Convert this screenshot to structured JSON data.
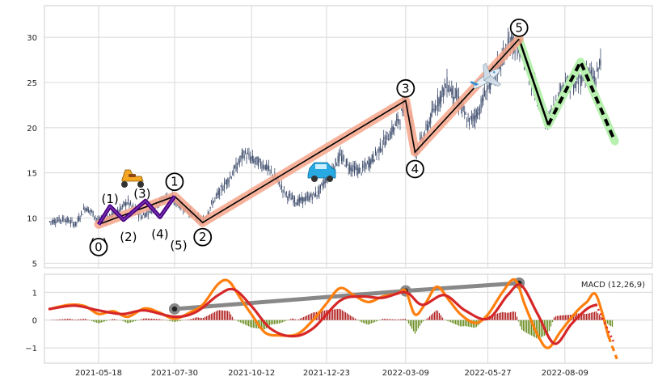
{
  "chart_data": [
    {
      "type": "candlestick",
      "panel": "price",
      "grid": true,
      "ylim": [
        4.5,
        33.5
      ],
      "yticks": [
        "5",
        "10",
        "15",
        "20",
        "25",
        "30"
      ],
      "xtick_labels": [
        "2021-05-18",
        "2021-07-30",
        "2021-10-12",
        "2021-12-23",
        "2022-03-09",
        "2022-05-27",
        "2022-08-09"
      ],
      "price_path": [
        [
          "2021-04-01",
          9.6
        ],
        [
          "2021-04-15",
          9.9
        ],
        [
          "2021-04-26",
          9.3
        ],
        [
          "2021-05-05",
          11.2
        ],
        [
          "2021-05-12",
          10.6
        ],
        [
          "2021-05-18",
          9.6
        ],
        [
          "2021-06-01",
          10.3
        ],
        [
          "2021-06-15",
          11.8
        ],
        [
          "2021-06-28",
          10.1
        ],
        [
          "2021-07-10",
          11.2
        ],
        [
          "2021-07-23",
          12.5
        ],
        [
          "2021-08-05",
          11.4
        ],
        [
          "2021-08-18",
          10.3
        ],
        [
          "2021-08-26",
          9.6
        ],
        [
          "2021-09-05",
          11.8
        ],
        [
          "2021-09-15",
          13.5
        ],
        [
          "2021-09-25",
          15.2
        ],
        [
          "2021-10-05",
          17.2
        ],
        [
          "2021-10-12",
          16.5
        ],
        [
          "2021-10-25",
          15.8
        ],
        [
          "2021-11-05",
          14.2
        ],
        [
          "2021-11-15",
          12.5
        ],
        [
          "2021-11-25",
          11.8
        ],
        [
          "2021-12-05",
          12.2
        ],
        [
          "2021-12-15",
          12.8
        ],
        [
          "2021-12-23",
          14.5
        ],
        [
          "2022-01-05",
          16.8
        ],
        [
          "2022-01-15",
          15.6
        ],
        [
          "2022-01-25",
          15.2
        ],
        [
          "2022-02-05",
          16.5
        ],
        [
          "2022-02-15",
          18.2
        ],
        [
          "2022-02-25",
          19.8
        ],
        [
          "2022-03-05",
          21.5
        ],
        [
          "2022-03-09",
          23.2
        ],
        [
          "2022-03-14",
          21.0
        ],
        [
          "2022-03-18",
          17.2
        ],
        [
          "2022-03-28",
          19.5
        ],
        [
          "2022-04-08",
          22.8
        ],
        [
          "2022-04-18",
          24.8
        ],
        [
          "2022-04-28",
          23.2
        ],
        [
          "2022-05-08",
          20.5
        ],
        [
          "2022-05-18",
          21.8
        ],
        [
          "2022-05-27",
          24.5
        ],
        [
          "2022-06-08",
          27.2
        ],
        [
          "2022-06-18",
          29.6
        ],
        [
          "2022-06-26",
          28.6
        ],
        [
          "2022-07-06",
          26.0
        ],
        [
          "2022-07-16",
          22.8
        ],
        [
          "2022-07-22",
          20.4
        ],
        [
          "2022-08-01",
          22.8
        ],
        [
          "2022-08-09",
          25.0
        ],
        [
          "2022-08-19",
          24.6
        ],
        [
          "2022-08-29",
          26.3
        ],
        [
          "2022-09-08",
          25.2
        ],
        [
          "2022-09-13",
          28.3
        ]
      ],
      "wave_labels": {
        "minor": [
          "(0)",
          "(1)",
          "(2)",
          "(3)",
          "(4)",
          "(5)"
        ],
        "major": [
          "0",
          "1",
          "2",
          "3",
          "4",
          "5"
        ]
      },
      "wave_points": {
        "major": [
          [
            "2021-05-18",
            9.3
          ],
          [
            "2021-07-30",
            12.4
          ],
          [
            "2021-08-26",
            9.5
          ],
          [
            "2022-03-09",
            23.0
          ],
          [
            "2022-03-18",
            17.3
          ],
          [
            "2022-06-26",
            29.8
          ]
        ],
        "minor": [
          [
            "2021-05-18",
            9.3
          ],
          [
            "2021-05-29",
            11.3
          ],
          [
            "2021-06-11",
            9.8
          ],
          [
            "2021-07-02",
            11.9
          ],
          [
            "2021-07-16",
            10.1
          ],
          [
            "2021-07-30",
            12.4
          ]
        ],
        "projection": [
          [
            "2022-06-26",
            29.8
          ],
          [
            "2022-07-24",
            20.3
          ],
          [
            "2022-08-24",
            27.3
          ],
          [
            "2022-09-26",
            18.5
          ]
        ]
      },
      "icons": [
        "scooter-icon",
        "car-icon",
        "airplane-icon"
      ],
      "colors": {
        "candles": "#3b4a6b",
        "minor_wave": "#4b0082",
        "major_halo": "#f4a58a",
        "projection_halo": "#b8f0b0",
        "grid": "#d8d8d8"
      }
    },
    {
      "type": "macd",
      "panel": "indicator",
      "label": "MACD (12,26,9)",
      "ylim": [
        -1.55,
        1.65
      ],
      "yticks": [
        "1",
        "0",
        "−1"
      ],
      "yticks_values": [
        1,
        0,
        -1
      ],
      "grid": true,
      "macd_points": [
        [
          "2021-04-01",
          0.4
        ],
        [
          "2021-04-20",
          0.55
        ],
        [
          "2021-05-05",
          0.5
        ],
        [
          "2021-05-18",
          0.22
        ],
        [
          "2021-06-01",
          0.32
        ],
        [
          "2021-06-15",
          0.12
        ],
        [
          "2021-07-01",
          0.42
        ],
        [
          "2021-07-15",
          0.28
        ],
        [
          "2021-07-30",
          0.05
        ],
        [
          "2021-08-15",
          0.3
        ],
        [
          "2021-08-26",
          0.55
        ],
        [
          "2021-09-10",
          1.3
        ],
        [
          "2021-09-20",
          1.4
        ],
        [
          "2021-10-01",
          0.8
        ],
        [
          "2021-10-12",
          0.2
        ],
        [
          "2021-10-25",
          -0.45
        ],
        [
          "2021-11-08",
          -0.55
        ],
        [
          "2021-11-25",
          -0.5
        ],
        [
          "2021-12-10",
          0.0
        ],
        [
          "2021-12-23",
          0.6
        ],
        [
          "2022-01-05",
          1.15
        ],
        [
          "2022-01-18",
          0.9
        ],
        [
          "2022-02-01",
          0.65
        ],
        [
          "2022-02-15",
          0.85
        ],
        [
          "2022-03-01",
          0.95
        ],
        [
          "2022-03-09",
          1.05
        ],
        [
          "2022-03-18",
          0.2
        ],
        [
          "2022-03-28",
          0.6
        ],
        [
          "2022-04-08",
          1.2
        ],
        [
          "2022-04-20",
          0.7
        ],
        [
          "2022-05-01",
          0.2
        ],
        [
          "2022-05-15",
          -0.1
        ],
        [
          "2022-05-27",
          0.2
        ],
        [
          "2022-06-10",
          1.0
        ],
        [
          "2022-06-22",
          1.45
        ],
        [
          "2022-07-02",
          0.5
        ],
        [
          "2022-07-14",
          -0.55
        ],
        [
          "2022-07-24",
          -1.0
        ],
        [
          "2022-08-05",
          -0.4
        ],
        [
          "2022-08-20",
          0.3
        ],
        [
          "2022-08-30",
          0.65
        ],
        [
          "2022-09-08",
          0.9
        ],
        [
          "2022-09-20",
          -0.6
        ],
        [
          "2022-09-28",
          -1.4
        ]
      ],
      "signal_points": [
        [
          "2021-04-01",
          0.4
        ],
        [
          "2021-04-25",
          0.52
        ],
        [
          "2021-05-18",
          0.35
        ],
        [
          "2021-06-10",
          0.22
        ],
        [
          "2021-07-01",
          0.35
        ],
        [
          "2021-07-30",
          0.12
        ],
        [
          "2021-08-20",
          0.3
        ],
        [
          "2021-09-10",
          0.9
        ],
        [
          "2021-09-25",
          1.1
        ],
        [
          "2021-10-12",
          0.5
        ],
        [
          "2021-10-30",
          -0.3
        ],
        [
          "2021-11-20",
          -0.58
        ],
        [
          "2021-12-10",
          -0.3
        ],
        [
          "2022-01-05",
          0.7
        ],
        [
          "2022-01-25",
          0.85
        ],
        [
          "2022-02-15",
          0.8
        ],
        [
          "2022-03-09",
          1.0
        ],
        [
          "2022-03-25",
          0.55
        ],
        [
          "2022-04-15",
          0.9
        ],
        [
          "2022-05-05",
          0.35
        ],
        [
          "2022-05-27",
          0.05
        ],
        [
          "2022-06-15",
          0.9
        ],
        [
          "2022-06-28",
          1.25
        ],
        [
          "2022-07-14",
          0.2
        ],
        [
          "2022-07-30",
          -0.85
        ],
        [
          "2022-08-15",
          -0.15
        ],
        [
          "2022-08-30",
          0.4
        ],
        [
          "2022-09-08",
          0.55
        ],
        [
          "2022-09-25",
          -0.8
        ]
      ],
      "divergence_points": [
        [
          "2021-07-30",
          0.4
        ],
        [
          "2022-03-09",
          1.05
        ],
        [
          "2022-06-26",
          1.33
        ]
      ],
      "colors": {
        "macd": "#ff7f0e",
        "signal": "#d62728",
        "hist_pos": "#b22222",
        "hist_neg": "#6b8e23",
        "divergence": "#888888"
      }
    }
  ]
}
